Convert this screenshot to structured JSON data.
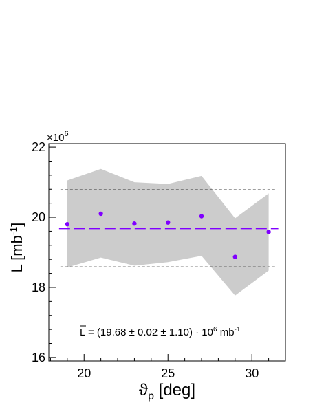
{
  "chart_data": {
    "type": "scatter",
    "xlabel": {
      "main": "ϑ",
      "sub": "p",
      "rest": " [deg]"
    },
    "ylabel": {
      "main": "L [mb",
      "sup": "-1",
      "rest": "]"
    },
    "y_multiplier": {
      "base": "×10",
      "exp": "6"
    },
    "xlim": [
      17.9,
      32.0
    ],
    "ylim": [
      15.9,
      22.1
    ],
    "x_ticks": [
      20,
      25,
      30
    ],
    "x_tick_labels": [
      "20",
      "25",
      "30"
    ],
    "y_ticks": [
      16,
      18,
      20,
      22
    ],
    "y_tick_labels": [
      "16",
      "18",
      "20",
      "22"
    ],
    "points": {
      "x": [
        19,
        21,
        23,
        25,
        27,
        29,
        31
      ],
      "y": [
        19.8,
        20.1,
        19.82,
        19.85,
        20.03,
        18.87,
        19.58
      ],
      "color": "#8000ff"
    },
    "band": {
      "x": [
        19,
        21,
        23,
        25,
        27,
        29,
        31
      ],
      "upper": [
        21.05,
        21.38,
        21.0,
        20.95,
        21.18,
        19.97,
        20.68
      ],
      "lower": [
        18.57,
        18.85,
        18.62,
        18.72,
        18.9,
        17.77,
        18.48
      ],
      "color": "#cccccc"
    },
    "mean_line": {
      "value": 19.68,
      "color": "#8000ff",
      "style": "dashed"
    },
    "sys_lines": {
      "upper": 20.78,
      "lower": 18.58,
      "color": "#000000",
      "style": "dotted"
    },
    "annotation": {
      "symbol": "L",
      "text": " = (19.68 ± 0.02 ± 1.10) · 10",
      "exp": "6",
      "unit": " mb",
      "unit_exp": "-1"
    }
  }
}
